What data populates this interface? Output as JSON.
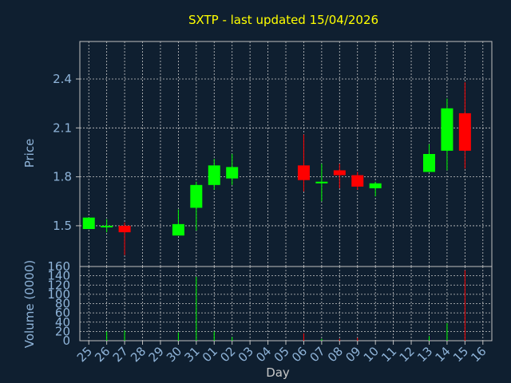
{
  "chart_data": [
    {
      "type": "candlestick",
      "title": "SXTP - last updated 15/04/2026",
      "ylabel": "Price",
      "ylim": [
        1.25,
        2.63
      ],
      "yticks": [
        "1.5",
        "1.8",
        "2.1",
        "2.4"
      ],
      "grid": true,
      "candles": [
        {
          "date": "25",
          "open": 1.48,
          "high": 1.55,
          "low": 1.48,
          "close": 1.55
        },
        {
          "date": "26",
          "open": 1.49,
          "high": 1.54,
          "low": 1.46,
          "close": 1.5
        },
        {
          "date": "27",
          "open": 1.5,
          "high": 1.52,
          "low": 1.32,
          "close": 1.46
        },
        {
          "date": "30",
          "open": 1.44,
          "high": 1.6,
          "low": 1.44,
          "close": 1.51
        },
        {
          "date": "31",
          "open": 1.61,
          "high": 1.77,
          "low": 1.47,
          "close": 1.75
        },
        {
          "date": "01",
          "open": 1.75,
          "high": 1.91,
          "low": 1.72,
          "close": 1.87
        },
        {
          "date": "02",
          "open": 1.79,
          "high": 1.94,
          "low": 1.75,
          "close": 1.86
        },
        {
          "date": "06",
          "open": 1.87,
          "high": 2.06,
          "low": 1.71,
          "close": 1.78
        },
        {
          "date": "07",
          "open": 1.76,
          "high": 1.88,
          "low": 1.65,
          "close": 1.77
        },
        {
          "date": "08",
          "open": 1.84,
          "high": 1.88,
          "low": 1.73,
          "close": 1.81
        },
        {
          "date": "09",
          "open": 1.81,
          "high": 1.83,
          "low": 1.72,
          "close": 1.74
        },
        {
          "date": "10",
          "open": 1.73,
          "high": 1.77,
          "low": 1.68,
          "close": 1.76
        },
        {
          "date": "13",
          "open": 1.83,
          "high": 2.0,
          "low": 1.83,
          "close": 1.94
        },
        {
          "date": "14",
          "open": 1.96,
          "high": 2.28,
          "low": 1.84,
          "close": 2.22
        },
        {
          "date": "15",
          "open": 2.19,
          "high": 2.38,
          "low": 1.85,
          "close": 1.96
        }
      ]
    },
    {
      "type": "bar",
      "xlabel": "Day",
      "ylabel": "Volume (0000)",
      "ylim": [
        0,
        160
      ],
      "yticks": [
        "0",
        "20",
        "40",
        "60",
        "80",
        "100",
        "120",
        "140",
        "160"
      ],
      "grid": true,
      "categories": [
        "25",
        "26",
        "27",
        "28",
        "29",
        "30",
        "31",
        "01",
        "02",
        "03",
        "04",
        "05",
        "06",
        "07",
        "08",
        "09",
        "10",
        "11",
        "12",
        "13",
        "14",
        "15",
        "16"
      ],
      "values": [
        0,
        20,
        22,
        0,
        0,
        18,
        138,
        20,
        8,
        0,
        0,
        0,
        16,
        4,
        4,
        6,
        0,
        0,
        0,
        10,
        38,
        152,
        0
      ],
      "up": [
        true,
        true,
        true,
        true,
        true,
        true,
        true,
        true,
        true,
        true,
        true,
        true,
        false,
        true,
        false,
        false,
        true,
        true,
        true,
        true,
        true,
        false,
        true
      ]
    }
  ],
  "colors": {
    "background": "#0f1f30",
    "axis": "#c0c0c0",
    "grid": "#c8c8c8",
    "title": "#ffff00",
    "label": "#8fb4d9",
    "up": "#00ff00",
    "down": "#ff0000"
  }
}
